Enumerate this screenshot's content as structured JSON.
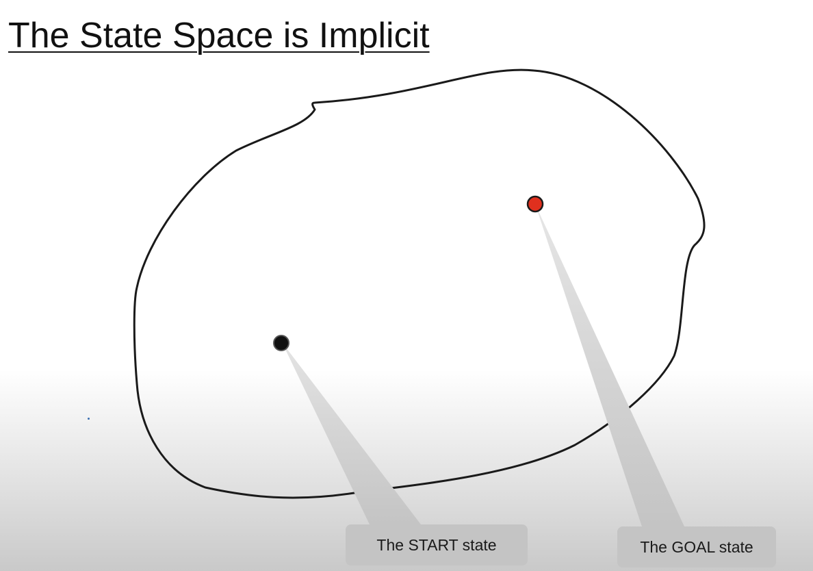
{
  "slide": {
    "title": "The State Space is Implicit"
  },
  "diagram": {
    "start_label": "The START state",
    "goal_label": "The GOAL state",
    "colors": {
      "outline": "#1a1a1a",
      "start_state": "#111111",
      "goal_state": "#e0301e",
      "callout": "#c4c4c4"
    }
  }
}
